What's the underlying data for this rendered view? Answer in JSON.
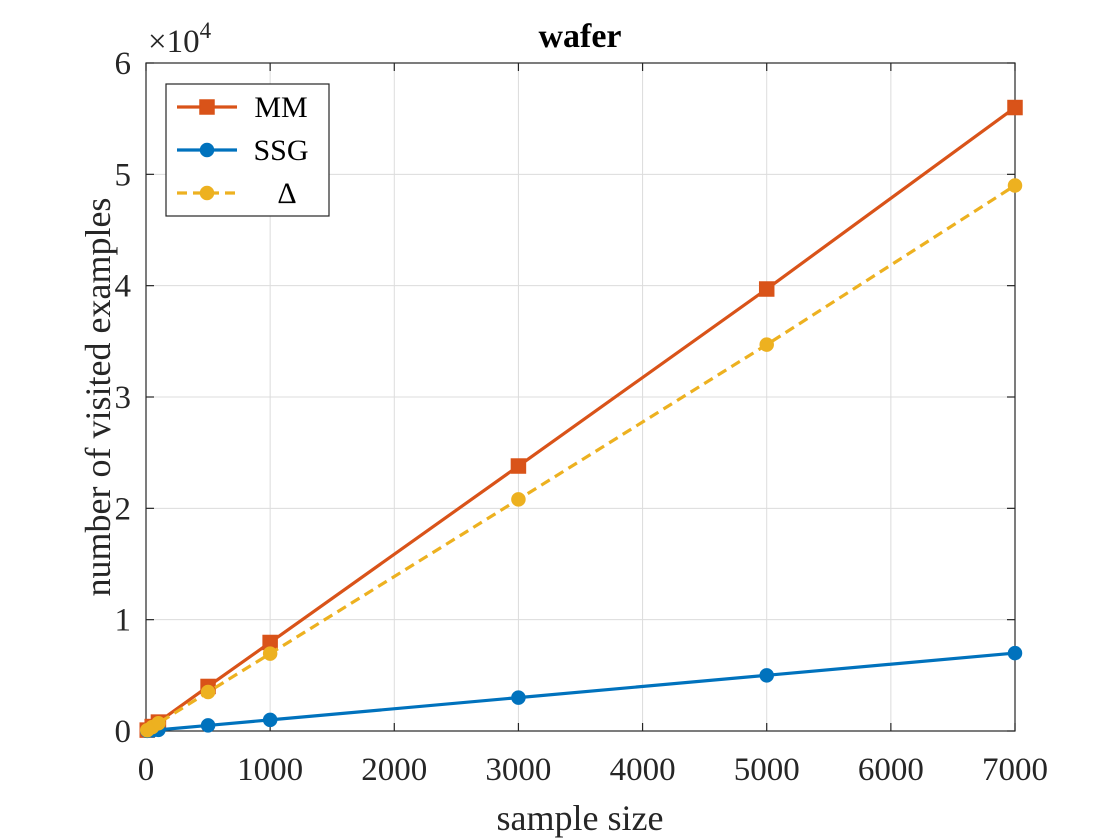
{
  "chart_data": {
    "type": "line",
    "title": "wafer",
    "xlabel": "sample size",
    "ylabel": "number of visited examples",
    "exponent_base": "×10",
    "exponent_power": "4",
    "xlim": [
      0,
      7000
    ],
    "ylim": [
      0,
      60000
    ],
    "xticks": [
      0,
      1000,
      2000,
      3000,
      4000,
      5000,
      6000,
      7000
    ],
    "xtick_labels": [
      "0",
      "1000",
      "2000",
      "3000",
      "4000",
      "5000",
      "6000",
      "7000"
    ],
    "yticks": [
      0,
      10000,
      20000,
      30000,
      40000,
      50000,
      60000
    ],
    "ytick_labels": [
      "0",
      "1",
      "2",
      "3",
      "4",
      "5",
      "6"
    ],
    "grid": true,
    "legend_position": "top-left",
    "x": [
      10,
      50,
      100,
      500,
      1000,
      3000,
      5000,
      7000
    ],
    "series": [
      {
        "name": "MM",
        "color": "#d95319",
        "marker": "square",
        "line_style": "solid",
        "values": [
          80,
          400,
          800,
          4000,
          7950,
          23800,
          39700,
          56000
        ]
      },
      {
        "name": "SSG",
        "color": "#0072bd",
        "marker": "circle",
        "line_style": "solid",
        "values": [
          10,
          50,
          100,
          500,
          1000,
          3000,
          5000,
          7000
        ]
      },
      {
        "name": "Δ",
        "color": "#edb120",
        "marker": "circle",
        "line_style": "dashed",
        "values": [
          70,
          350,
          700,
          3500,
          6950,
          20800,
          34700,
          49000
        ]
      }
    ]
  }
}
